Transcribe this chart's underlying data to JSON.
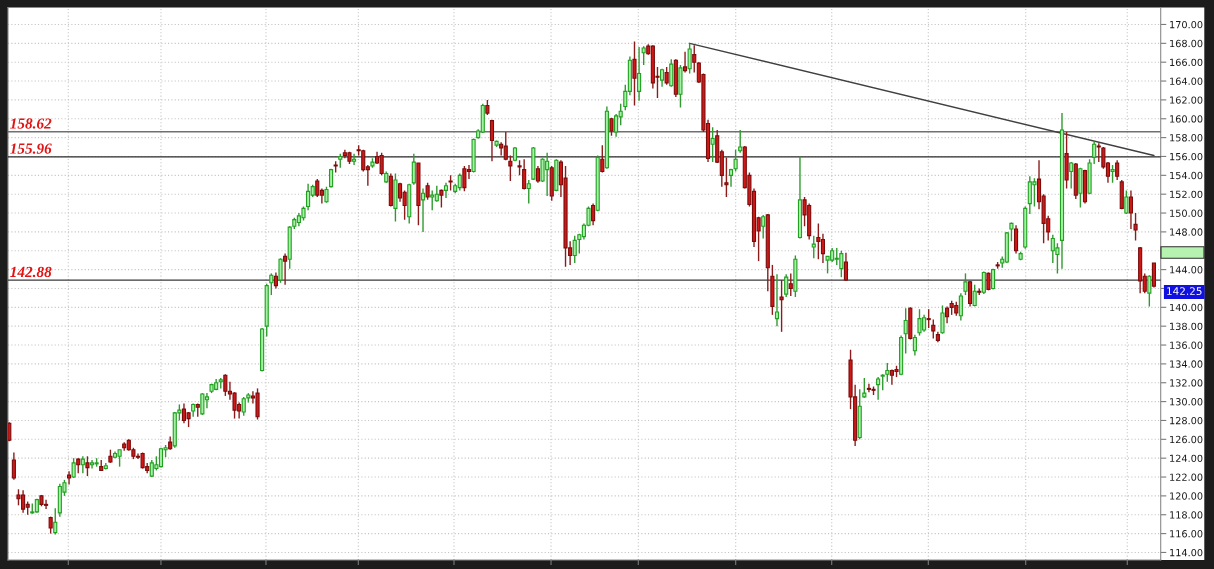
{
  "chart_data": {
    "type": "candlestick",
    "categories": [
      null,
      null,
      null,
      null,
      null,
      null,
      null,
      null,
      null,
      null,
      null,
      null,
      null,
      null,
      null,
      null,
      null,
      null,
      null,
      null,
      null,
      null,
      null,
      null,
      null,
      null,
      null,
      null,
      null,
      null,
      null,
      null,
      null,
      null,
      null,
      null,
      null,
      null,
      null,
      null,
      null,
      null,
      null,
      null,
      null,
      null,
      null,
      null,
      null,
      null,
      null,
      null,
      null,
      null,
      null,
      null,
      null,
      null,
      null,
      null,
      null,
      null,
      null,
      null,
      null,
      null,
      null,
      null,
      null,
      null,
      null,
      null,
      null,
      null,
      null,
      null,
      null,
      null,
      null,
      null,
      null,
      null,
      null,
      null,
      null,
      null,
      null,
      null,
      null,
      null,
      null,
      null,
      null,
      null,
      null,
      null,
      null,
      null,
      null,
      null,
      null,
      null,
      null,
      null,
      null,
      null,
      null,
      null,
      null,
      null,
      null,
      null,
      null,
      null,
      null,
      null,
      null,
      null,
      null,
      null,
      null,
      null,
      null,
      null,
      null,
      null,
      null,
      null,
      null,
      null,
      null,
      null,
      null,
      null,
      null,
      null,
      null,
      null,
      null,
      null,
      null,
      null,
      null,
      null,
      null,
      null,
      null,
      null,
      null,
      null,
      null,
      null,
      null,
      null,
      null,
      null,
      null,
      null,
      null,
      null,
      null,
      null,
      null,
      null,
      null,
      null,
      null,
      null,
      null,
      null,
      null,
      null,
      null,
      null,
      null,
      null,
      null,
      null,
      null,
      null,
      null,
      null,
      null,
      null,
      null,
      null,
      null,
      null,
      null,
      null,
      null,
      null,
      null,
      null,
      null,
      null,
      null,
      null,
      null,
      null,
      null,
      null,
      null,
      null,
      null,
      null,
      null,
      null,
      null,
      null,
      null,
      null,
      null,
      null,
      null,
      null,
      null,
      null,
      null,
      null,
      null,
      null,
      null,
      null,
      null,
      null,
      null,
      null,
      null,
      null,
      null,
      null,
      null,
      null,
      null,
      null,
      null,
      null,
      null,
      null,
      null,
      null,
      null,
      null,
      null,
      null,
      null,
      null,
      null,
      null
    ],
    "ohlc": [
      [
        127.7,
        127.8,
        125.8,
        125.9
      ],
      [
        123.8,
        124.6,
        121.7,
        121.9
      ],
      [
        120.1,
        120.7,
        119.0,
        119.7
      ],
      [
        120.1,
        120.6,
        118.2,
        118.6
      ],
      [
        119.1,
        119.4,
        118.0,
        118.8
      ],
      [
        118.2,
        119.2,
        118.1,
        118.3
      ],
      [
        118.3,
        119.7,
        118.2,
        119.6
      ],
      [
        120.0,
        120.1,
        118.9,
        119.1
      ],
      [
        119.1,
        119.6,
        118.6,
        119.0
      ],
      [
        117.7,
        117.8,
        116.0,
        116.6
      ],
      [
        116.1,
        118.7,
        115.9,
        117.2
      ],
      [
        118.2,
        121.3,
        117.8,
        121.0
      ],
      [
        120.4,
        121.7,
        120.0,
        121.4
      ],
      [
        122.2,
        122.6,
        121.2,
        121.9
      ],
      [
        122.0,
        124.0,
        121.9,
        123.5
      ],
      [
        123.9,
        124.0,
        122.4,
        123.3
      ],
      [
        123.3,
        124.2,
        122.4,
        123.9
      ],
      [
        123.5,
        124.2,
        122.1,
        123.0
      ],
      [
        123.3,
        123.8,
        122.9,
        123.5
      ],
      [
        123.4,
        124.0,
        123.1,
        123.5
      ],
      [
        123.1,
        123.8,
        122.7,
        122.7
      ],
      [
        122.9,
        123.5,
        122.8,
        123.2
      ],
      [
        124.2,
        124.9,
        123.5,
        123.6
      ],
      [
        124.1,
        124.7,
        124.0,
        124.5
      ],
      [
        124.2,
        124.9,
        123.1,
        124.9
      ],
      [
        125.5,
        125.7,
        124.8,
        125.1
      ],
      [
        125.9,
        126.0,
        124.8,
        124.9
      ],
      [
        124.9,
        125.1,
        123.9,
        124.2
      ],
      [
        124.2,
        124.5,
        123.9,
        124.1
      ],
      [
        124.5,
        124.6,
        122.9,
        123.0
      ],
      [
        123.1,
        123.5,
        122.4,
        122.7
      ],
      [
        122.1,
        123.8,
        122.0,
        123.5
      ],
      [
        122.9,
        124.2,
        122.7,
        123.3
      ],
      [
        123.1,
        125.1,
        123.0,
        125.0
      ],
      [
        124.9,
        125.4,
        124.1,
        125.1
      ],
      [
        125.7,
        126.3,
        124.9,
        125.0
      ],
      [
        125.3,
        128.9,
        125.1,
        128.8
      ],
      [
        128.8,
        129.7,
        128.0,
        129.1
      ],
      [
        129.2,
        129.8,
        127.7,
        128.0
      ],
      [
        128.8,
        128.9,
        127.3,
        128.2
      ],
      [
        129.0,
        129.8,
        128.4,
        129.7
      ],
      [
        129.7,
        129.8,
        128.4,
        129.4
      ],
      [
        128.7,
        130.9,
        128.6,
        130.8
      ],
      [
        130.2,
        130.9,
        129.3,
        130.5
      ],
      [
        131.1,
        131.9,
        130.9,
        131.8
      ],
      [
        131.3,
        132.4,
        131.2,
        132.0
      ],
      [
        132.1,
        132.5,
        131.4,
        132.3
      ],
      [
        132.8,
        132.9,
        130.6,
        131.1
      ],
      [
        131.1,
        132.1,
        130.2,
        130.8
      ],
      [
        130.9,
        131.0,
        128.2,
        129.1
      ],
      [
        129.7,
        129.9,
        128.2,
        129.0
      ],
      [
        128.9,
        130.5,
        128.5,
        130.3
      ],
      [
        130.4,
        130.9,
        129.9,
        130.7
      ],
      [
        130.6,
        131.1,
        129.8,
        130.4
      ],
      [
        130.9,
        131.4,
        128.1,
        128.4
      ],
      [
        133.3,
        137.8,
        133.2,
        137.7
      ],
      [
        138.0,
        142.5,
        136.9,
        142.3
      ],
      [
        142.6,
        143.6,
        141.3,
        143.4
      ],
      [
        143.3,
        143.7,
        142.0,
        142.3
      ],
      [
        142.9,
        145.2,
        142.6,
        145.1
      ],
      [
        145.4,
        145.7,
        142.4,
        144.9
      ],
      [
        145.1,
        148.6,
        144.1,
        148.5
      ],
      [
        148.6,
        149.5,
        148.3,
        149.3
      ],
      [
        149.0,
        150.0,
        148.6,
        149.7
      ],
      [
        149.5,
        150.7,
        149.2,
        150.5
      ],
      [
        150.7,
        153.1,
        150.3,
        152.3
      ],
      [
        151.9,
        153.0,
        151.7,
        152.8
      ],
      [
        153.4,
        153.6,
        151.7,
        151.9
      ],
      [
        152.4,
        152.6,
        151.0,
        151.9
      ],
      [
        151.2,
        152.8,
        151.1,
        152.5
      ],
      [
        152.8,
        154.7,
        152.7,
        154.6
      ],
      [
        155.1,
        155.5,
        154.3,
        155.0
      ],
      [
        155.7,
        156.3,
        154.8,
        156.0
      ],
      [
        156.4,
        156.7,
        155.8,
        156.1
      ],
      [
        156.4,
        156.5,
        155.2,
        155.5
      ],
      [
        155.5,
        156.3,
        155.1,
        155.7
      ],
      [
        156.7,
        157.2,
        156.1,
        156.6
      ],
      [
        156.6,
        156.7,
        154.4,
        154.6
      ],
      [
        154.9,
        155.1,
        152.9,
        154.6
      ],
      [
        155.0,
        155.8,
        154.8,
        155.4
      ],
      [
        156.0,
        156.5,
        155.2,
        155.3
      ],
      [
        156.1,
        156.4,
        154.0,
        154.2
      ],
      [
        153.3,
        154.4,
        153.2,
        154.2
      ],
      [
        153.9,
        154.2,
        150.7,
        150.8
      ],
      [
        150.5,
        154.2,
        149.1,
        153.5
      ],
      [
        153.1,
        153.2,
        151.2,
        151.6
      ],
      [
        152.2,
        152.4,
        149.3,
        150.8
      ],
      [
        149.6,
        153.1,
        148.9,
        153.0
      ],
      [
        153.2,
        156.3,
        153.0,
        155.4
      ],
      [
        155.3,
        155.3,
        148.7,
        150.8
      ],
      [
        151.4,
        152.6,
        148.0,
        152.1
      ],
      [
        152.9,
        153.2,
        151.4,
        151.7
      ],
      [
        151.7,
        152.4,
        150.3,
        151.9
      ],
      [
        151.3,
        152.9,
        151.2,
        152.0
      ],
      [
        152.4,
        152.5,
        150.6,
        151.9
      ],
      [
        152.4,
        153.2,
        151.6,
        152.9
      ],
      [
        153.4,
        154.0,
        152.4,
        153.3
      ],
      [
        152.3,
        153.1,
        152.1,
        152.9
      ],
      [
        152.7,
        154.2,
        152.4,
        154.0
      ],
      [
        154.7,
        155.0,
        152.3,
        152.7
      ],
      [
        154.6,
        155.1,
        153.6,
        154.4
      ],
      [
        154.4,
        157.9,
        154.3,
        157.8
      ],
      [
        158.0,
        158.9,
        157.9,
        158.7
      ],
      [
        158.6,
        161.6,
        158.5,
        161.4
      ],
      [
        161.4,
        162.0,
        160.4,
        160.6
      ],
      [
        159.8,
        159.9,
        155.5,
        157.7
      ],
      [
        157.2,
        157.7,
        157.0,
        157.6
      ],
      [
        157.3,
        157.5,
        156.1,
        156.9
      ],
      [
        157.1,
        158.6,
        155.6,
        155.7
      ],
      [
        155.5,
        156.1,
        153.4,
        155.0
      ],
      [
        155.6,
        157.0,
        155.5,
        156.9
      ],
      [
        155.0,
        155.6,
        154.0,
        154.9
      ],
      [
        154.6,
        155.7,
        152.5,
        152.6
      ],
      [
        152.6,
        153.5,
        151.0,
        153.1
      ],
      [
        153.6,
        157.0,
        153.5,
        156.9
      ],
      [
        154.7,
        155.0,
        153.2,
        153.4
      ],
      [
        153.4,
        155.8,
        153.3,
        155.7
      ],
      [
        154.6,
        156.4,
        151.8,
        155.5
      ],
      [
        154.8,
        155.0,
        151.3,
        151.8
      ],
      [
        152.4,
        155.7,
        152.3,
        155.6
      ],
      [
        155.4,
        155.6,
        151.7,
        153.0
      ],
      [
        153.7,
        155.0,
        144.3,
        146.3
      ],
      [
        146.3,
        147.0,
        144.5,
        145.5
      ],
      [
        145.5,
        147.6,
        144.7,
        147.1
      ],
      [
        147.2,
        147.8,
        145.7,
        147.7
      ],
      [
        147.5,
        148.9,
        147.2,
        148.7
      ],
      [
        148.7,
        150.7,
        148.6,
        150.5
      ],
      [
        150.8,
        151.0,
        148.7,
        149.2
      ],
      [
        150.3,
        156.1,
        150.2,
        155.9
      ],
      [
        155.7,
        157.2,
        154.3,
        154.4
      ],
      [
        154.8,
        161.3,
        154.7,
        160.8
      ],
      [
        160.0,
        160.1,
        158.2,
        158.7
      ],
      [
        158.6,
        160.5,
        158.1,
        160.3
      ],
      [
        160.2,
        161.6,
        159.3,
        160.8
      ],
      [
        161.3,
        163.6,
        160.9,
        162.9
      ],
      [
        162.9,
        166.6,
        162.5,
        166.2
      ],
      [
        166.3,
        168.2,
        161.4,
        164.3
      ],
      [
        162.9,
        167.6,
        161.9,
        164.8
      ],
      [
        167.0,
        167.7,
        165.7,
        167.5
      ],
      [
        167.7,
        167.9,
        166.8,
        166.9
      ],
      [
        167.7,
        167.8,
        163.2,
        163.8
      ],
      [
        164.5,
        165.5,
        162.2,
        164.4
      ],
      [
        164.1,
        165.3,
        163.4,
        165.2
      ],
      [
        164.9,
        165.5,
        163.6,
        163.8
      ],
      [
        163.5,
        166.3,
        163.4,
        165.8
      ],
      [
        166.2,
        166.3,
        162.3,
        162.6
      ],
      [
        162.6,
        165.7,
        161.2,
        165.4
      ],
      [
        165.5,
        167.1,
        164.9,
        165.1
      ],
      [
        165.3,
        168.0,
        164.8,
        167.4
      ],
      [
        166.8,
        167.8,
        164.9,
        166.0
      ],
      [
        165.9,
        166.0,
        163.8,
        163.9
      ],
      [
        164.7,
        164.8,
        158.6,
        158.8
      ],
      [
        159.5,
        159.9,
        155.4,
        155.8
      ],
      [
        157.3,
        159.1,
        155.4,
        157.9
      ],
      [
        158.2,
        158.8,
        155.3,
        155.4
      ],
      [
        156.5,
        156.7,
        152.8,
        154.0
      ],
      [
        153.2,
        155.9,
        151.7,
        153.0
      ],
      [
        154.0,
        154.7,
        152.8,
        154.6
      ],
      [
        154.7,
        156.7,
        154.4,
        155.7
      ],
      [
        156.6,
        158.8,
        156.4,
        157.0
      ],
      [
        157.0,
        157.1,
        152.6,
        152.7
      ],
      [
        154.0,
        154.3,
        150.7,
        150.9
      ],
      [
        152.3,
        152.6,
        146.4,
        147.0
      ],
      [
        149.5,
        149.6,
        144.9,
        148.1
      ],
      [
        148.6,
        149.8,
        147.3,
        149.6
      ],
      [
        149.8,
        149.9,
        141.7,
        144.2
      ],
      [
        143.3,
        144.5,
        139.2,
        140.1
      ],
      [
        138.8,
        143.5,
        138.0,
        139.5
      ],
      [
        141.1,
        142.9,
        137.4,
        140.8
      ],
      [
        141.4,
        143.5,
        141.1,
        143.2
      ],
      [
        142.5,
        143.6,
        141.2,
        142.0
      ],
      [
        141.7,
        145.5,
        141.1,
        145.1
      ],
      [
        147.4,
        156.0,
        147.3,
        151.4
      ],
      [
        151.4,
        151.7,
        148.6,
        149.8
      ],
      [
        150.8,
        151.0,
        147.2,
        147.6
      ],
      [
        146.4,
        147.6,
        145.2,
        146.7
      ],
      [
        147.4,
        148.9,
        145.1,
        147.0
      ],
      [
        147.2,
        147.8,
        144.7,
        145.7
      ],
      [
        145.0,
        145.4,
        143.6,
        145.4
      ],
      [
        145.0,
        146.3,
        144.8,
        146.0
      ],
      [
        145.1,
        146.3,
        144.5,
        145.2
      ],
      [
        144.1,
        146.0,
        143.2,
        145.7
      ],
      [
        144.8,
        145.8,
        142.8,
        142.9
      ],
      [
        134.4,
        135.5,
        129.2,
        130.5
      ],
      [
        130.5,
        131.8,
        125.3,
        125.9
      ],
      [
        126.2,
        131.3,
        126.0,
        129.5
      ],
      [
        130.5,
        132.5,
        130.4,
        130.9
      ],
      [
        131.4,
        131.9,
        131.0,
        131.3
      ],
      [
        131.3,
        131.6,
        130.7,
        131.2
      ],
      [
        131.8,
        132.6,
        130.2,
        132.4
      ],
      [
        132.7,
        132.9,
        131.2,
        132.8
      ],
      [
        132.9,
        134.1,
        132.1,
        133.3
      ],
      [
        133.3,
        133.4,
        131.8,
        132.8
      ],
      [
        133.4,
        133.8,
        132.6,
        133.2
      ],
      [
        132.9,
        137.0,
        132.8,
        136.8
      ],
      [
        137.2,
        139.9,
        135.1,
        138.6
      ],
      [
        139.9,
        140.0,
        136.6,
        136.7
      ],
      [
        135.4,
        137.1,
        134.9,
        136.8
      ],
      [
        137.3,
        139.8,
        137.0,
        138.8
      ],
      [
        137.6,
        139.2,
        137.4,
        138.9
      ],
      [
        138.8,
        139.8,
        137.8,
        138.7
      ],
      [
        138.1,
        138.7,
        136.7,
        137.5
      ],
      [
        137.1,
        137.4,
        136.3,
        136.5
      ],
      [
        137.3,
        140.2,
        137.2,
        139.4
      ],
      [
        139.9,
        140.1,
        138.3,
        139.0
      ],
      [
        140.4,
        140.7,
        139.2,
        140.0
      ],
      [
        140.2,
        140.6,
        139.1,
        139.4
      ],
      [
        139.1,
        141.5,
        138.6,
        141.2
      ],
      [
        141.7,
        143.6,
        141.3,
        142.7
      ],
      [
        142.7,
        142.8,
        140.1,
        140.4
      ],
      [
        140.2,
        142.4,
        140.1,
        141.7
      ],
      [
        141.7,
        142.0,
        141.3,
        141.6
      ],
      [
        141.6,
        143.8,
        141.4,
        143.7
      ],
      [
        143.6,
        143.7,
        141.8,
        141.9
      ],
      [
        142.0,
        144.1,
        141.9,
        144.0
      ],
      [
        144.5,
        144.8,
        144.1,
        144.4
      ],
      [
        144.7,
        145.4,
        144.2,
        145.1
      ],
      [
        144.8,
        148.0,
        144.7,
        147.9
      ],
      [
        148.3,
        149.0,
        147.0,
        148.9
      ],
      [
        148.3,
        148.7,
        145.7,
        146.0
      ],
      [
        145.1,
        145.9,
        145.0,
        145.7
      ],
      [
        146.4,
        150.7,
        146.2,
        150.5
      ],
      [
        151.0,
        153.9,
        149.9,
        153.3
      ],
      [
        153.0,
        153.7,
        150.7,
        153.3
      ],
      [
        153.6,
        155.6,
        150.4,
        151.2
      ],
      [
        151.8,
        152.0,
        146.8,
        148.9
      ],
      [
        149.4,
        149.7,
        147.1,
        148.0
      ],
      [
        146.0,
        147.7,
        144.7,
        147.3
      ],
      [
        145.6,
        146.8,
        143.6,
        146.3
      ],
      [
        147.1,
        160.6,
        144.1,
        158.8
      ],
      [
        156.3,
        158.6,
        152.6,
        153.5
      ],
      [
        154.4,
        155.4,
        152.6,
        155.3
      ],
      [
        155.2,
        155.3,
        151.5,
        151.9
      ],
      [
        152.1,
        154.8,
        150.6,
        154.7
      ],
      [
        154.5,
        154.6,
        151.0,
        151.2
      ],
      [
        152.1,
        155.7,
        152.0,
        155.3
      ],
      [
        155.9,
        157.6,
        155.2,
        157.3
      ],
      [
        157.1,
        157.4,
        155.4,
        157.0
      ],
      [
        156.9,
        157.0,
        154.7,
        154.9
      ],
      [
        155.3,
        155.4,
        153.2,
        153.9
      ],
      [
        154.4,
        155.1,
        153.2,
        154.6
      ],
      [
        155.3,
        155.6,
        153.5,
        153.9
      ],
      [
        153.3,
        153.5,
        150.4,
        150.5
      ],
      [
        150.0,
        152.4,
        149.9,
        151.7
      ],
      [
        151.7,
        152.4,
        148.3,
        150.0
      ],
      [
        148.8,
        150.0,
        147.1,
        148.2
      ],
      [
        146.3,
        146.4,
        141.5,
        142.8
      ],
      [
        143.3,
        143.6,
        141.5,
        141.7
      ],
      [
        141.5,
        143.4,
        140.1,
        143.3
      ],
      [
        144.7,
        144.7,
        142.1,
        142.25
      ]
    ],
    "series": [
      {
        "type": "line",
        "color": "#404040",
        "values": [
          null,
          null,
          null,
          null,
          null,
          null,
          null,
          null,
          null,
          null,
          null,
          null,
          null,
          null,
          null,
          null,
          null,
          null,
          null,
          null,
          null,
          null,
          null,
          null,
          null,
          null,
          null,
          null,
          null,
          null,
          null,
          null,
          null,
          null,
          null,
          null,
          null,
          null,
          null,
          null,
          null,
          null,
          null,
          null,
          null,
          null,
          null,
          null,
          null,
          null,
          null,
          null,
          null,
          null,
          null,
          null,
          null,
          null,
          null,
          null,
          null,
          null,
          null,
          null,
          null,
          null,
          null,
          null,
          null,
          null,
          null,
          null,
          null,
          null,
          null,
          null,
          null,
          null,
          null,
          null,
          null,
          null,
          null,
          null,
          null,
          null,
          null,
          null,
          null,
          null,
          null,
          null,
          null,
          null,
          null,
          null,
          null,
          null,
          null,
          null,
          null,
          null,
          null,
          null,
          null,
          null,
          null,
          null,
          null,
          null,
          null,
          null,
          null,
          null,
          null,
          null,
          null,
          null,
          null,
          null,
          null,
          null,
          null,
          null,
          null,
          null,
          null,
          null,
          null,
          null,
          null,
          null,
          null,
          null,
          null,
          null,
          null,
          null,
          null,
          null,
          null,
          null,
          null,
          null,
          null,
          null,
          null,
          null,
          168.0,
          null,
          null,
          null,
          null,
          null,
          null,
          null,
          null,
          null,
          null,
          null,
          null,
          null,
          null,
          null,
          null,
          null,
          null,
          null,
          null,
          null,
          null,
          null,
          null,
          null,
          null,
          null,
          null,
          null,
          null,
          null,
          null,
          null,
          null,
          null,
          null,
          null,
          null,
          null,
          null,
          null,
          null,
          null,
          null,
          null,
          null,
          null,
          null,
          null,
          null,
          null,
          null,
          null,
          null,
          null,
          null,
          null,
          null,
          null,
          null,
          null,
          null,
          null,
          null,
          null,
          null,
          null,
          null,
          null,
          null,
          null,
          null,
          null,
          null,
          null,
          null,
          null,
          null,
          null,
          null,
          null,
          null,
          null,
          null,
          null,
          null,
          null,
          null,
          null,
          null,
          null,
          null,
          null,
          null,
          null,
          null,
          null,
          null,
          null,
          null,
          156.1
        ]
      }
    ],
    "ylim": [
      113.2,
      171.8
    ],
    "yticks": [
      {
        "value": 114,
        "label": "114.00"
      },
      {
        "value": 116,
        "label": "116.00"
      },
      {
        "value": 118,
        "label": "118.00"
      },
      {
        "value": 120,
        "label": "120.00"
      },
      {
        "value": 122,
        "label": "122.00"
      },
      {
        "value": 124,
        "label": "124.00"
      },
      {
        "value": 126,
        "label": "126.00"
      },
      {
        "value": 128,
        "label": "128.00"
      },
      {
        "value": 130,
        "label": "130.00"
      },
      {
        "value": 132,
        "label": "132.00"
      },
      {
        "value": 134,
        "label": "134.00"
      },
      {
        "value": 136,
        "label": "136.00"
      },
      {
        "value": 138,
        "label": "138.00"
      },
      {
        "value": 140,
        "label": "140.00"
      },
      {
        "value": 142,
        "label": null
      },
      {
        "value": 144,
        "label": "144.00"
      },
      {
        "value": 146,
        "label": null
      },
      {
        "value": 148,
        "label": "148.00"
      },
      {
        "value": 150,
        "label": "150.00"
      },
      {
        "value": 152,
        "label": "152.00"
      },
      {
        "value": 154,
        "label": "154.00"
      },
      {
        "value": 156,
        "label": "156.00"
      },
      {
        "value": 158,
        "label": "158.00"
      },
      {
        "value": 160,
        "label": "160.00"
      },
      {
        "value": 162,
        "label": "162.00"
      },
      {
        "value": 164,
        "label": "164.00"
      },
      {
        "value": 166,
        "label": "166.00"
      },
      {
        "value": 168,
        "label": "168.00"
      },
      {
        "value": 170,
        "label": "170.00"
      }
    ],
    "ref_lines": [
      {
        "axis": "y",
        "value": 158.62,
        "label": "158.62",
        "color": "#707070"
      },
      {
        "axis": "y",
        "value": 155.96,
        "label": "155.96",
        "color": "#2a2a2a"
      },
      {
        "axis": "y",
        "value": 142.88,
        "label": "142.88",
        "color": "#3a3a3a"
      }
    ],
    "annotations": [
      "142.25"
    ],
    "grid": true,
    "tick_labels": "y"
  }
}
